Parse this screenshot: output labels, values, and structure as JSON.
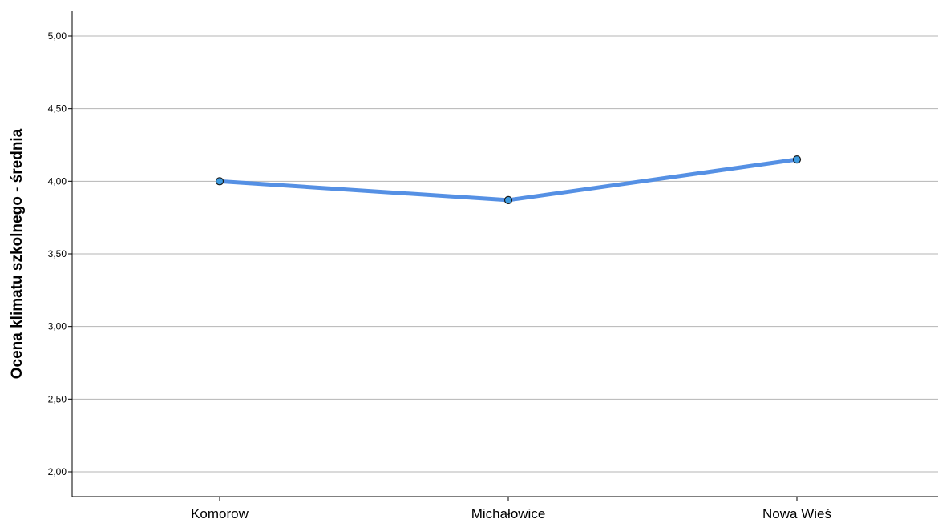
{
  "chart_data": {
    "type": "line",
    "categories": [
      "Komorow",
      "Michałowice",
      "Nowa Wieś"
    ],
    "values": [
      4.0,
      3.87,
      4.15
    ],
    "ylabel": "Ocena klimatu szkolnego - średnia",
    "xlabel": "",
    "ylim": [
      1.85,
      5.17
    ],
    "yticks": [
      2.0,
      2.5,
      3.0,
      3.5,
      4.0,
      4.5,
      5.0
    ],
    "ytick_labels": [
      "2,00",
      "2,50",
      "3,00",
      "3,50",
      "4,00",
      "4,50",
      "5,00"
    ],
    "grid": true,
    "colors": {
      "line": "#5590e4",
      "marker_fill": "#3c9be0",
      "marker_stroke": "#1a1a1a",
      "grid": "#b4b4b4",
      "axis": "#000000"
    }
  }
}
